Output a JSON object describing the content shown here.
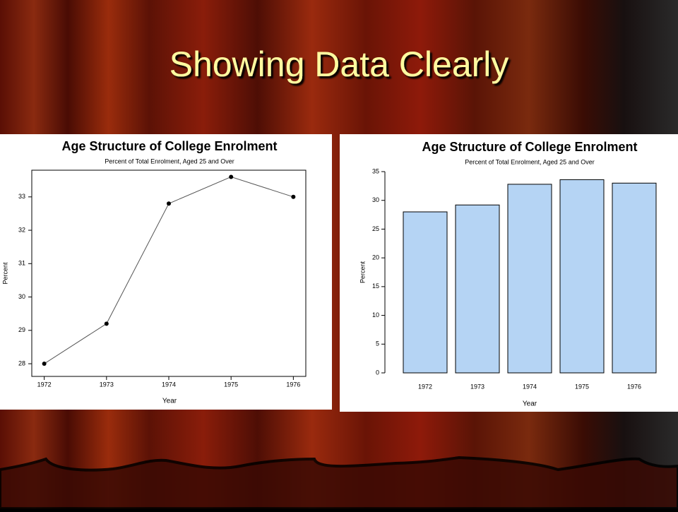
{
  "title": "Showing Data Clearly",
  "chart_data": [
    {
      "type": "line",
      "title": "Age Structure of College Enrolment",
      "subtitle": "Percent of Total Enrolment, Aged 25 and Over",
      "x": [
        1972,
        1973,
        1974,
        1975,
        1976
      ],
      "values": [
        28.0,
        29.2,
        32.8,
        33.6,
        33.0
      ],
      "xlabel": "Year",
      "ylabel": "Percent",
      "color": "#555555",
      "xlim": [
        1971.8,
        1976.2
      ],
      "xticks": [
        1972,
        1973,
        1974,
        1975,
        1976
      ],
      "ylim": [
        27.62,
        33.8
      ],
      "yticks": [
        28,
        29,
        30,
        31,
        32,
        33
      ]
    },
    {
      "type": "bar",
      "title": "Age Structure of College Enrolment",
      "subtitle": "Percent of Total Enrolment, Aged 25 and Over",
      "categories": [
        "1972",
        "1973",
        "1974",
        "1975",
        "1976"
      ],
      "values": [
        28.0,
        29.2,
        32.8,
        33.6,
        33.0
      ],
      "xlabel": "Year",
      "ylabel": "Percent",
      "color": "#b5d4f4",
      "ylim": [
        0,
        35
      ],
      "yticks": [
        0,
        5,
        10,
        15,
        20,
        25,
        30,
        35
      ]
    }
  ]
}
